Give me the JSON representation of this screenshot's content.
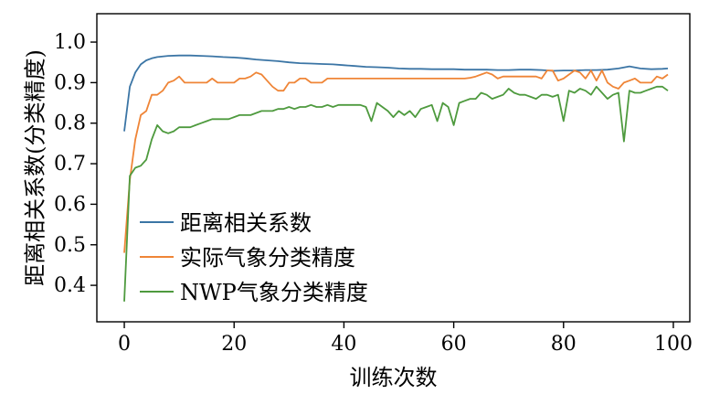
{
  "chart_data": {
    "type": "line",
    "title": "",
    "xlabel": "训练次数",
    "ylabel": "距离相关系数(分类精度)",
    "xlim": [
      -5,
      103
    ],
    "ylim": [
      0.31,
      1.07
    ],
    "xticks": [
      0,
      20,
      40,
      60,
      80,
      100
    ],
    "yticks": [
      0.4,
      0.5,
      0.6,
      0.7,
      0.8,
      0.9,
      1.0
    ],
    "legend_position": "lower-left",
    "grid": false,
    "series": [
      {
        "name": "距离相关系数",
        "color": "#3b75a5",
        "x": [
          0,
          1,
          2,
          3,
          4,
          5,
          6,
          8,
          10,
          12,
          14,
          16,
          18,
          20,
          22,
          24,
          26,
          28,
          30,
          32,
          34,
          36,
          38,
          40,
          42,
          44,
          46,
          48,
          50,
          52,
          54,
          56,
          58,
          60,
          62,
          64,
          66,
          68,
          70,
          72,
          74,
          76,
          78,
          80,
          82,
          84,
          86,
          88,
          90,
          92,
          94,
          96,
          98,
          99
        ],
        "y": [
          0.78,
          0.89,
          0.925,
          0.945,
          0.955,
          0.96,
          0.963,
          0.966,
          0.967,
          0.967,
          0.966,
          0.965,
          0.963,
          0.962,
          0.96,
          0.957,
          0.955,
          0.953,
          0.95,
          0.948,
          0.947,
          0.946,
          0.945,
          0.943,
          0.941,
          0.939,
          0.938,
          0.937,
          0.935,
          0.934,
          0.934,
          0.933,
          0.933,
          0.933,
          0.932,
          0.932,
          0.932,
          0.931,
          0.931,
          0.932,
          0.932,
          0.931,
          0.929,
          0.93,
          0.93,
          0.931,
          0.931,
          0.932,
          0.935,
          0.94,
          0.935,
          0.933,
          0.934,
          0.935
        ]
      },
      {
        "name": "实际气象分类精度",
        "color": "#ef8537",
        "x": [
          0,
          1,
          2,
          3,
          4,
          5,
          6,
          7,
          8,
          9,
          10,
          11,
          12,
          13,
          14,
          15,
          16,
          17,
          18,
          19,
          20,
          21,
          22,
          23,
          24,
          25,
          26,
          27,
          28,
          29,
          30,
          31,
          32,
          33,
          34,
          35,
          36,
          37,
          38,
          40,
          42,
          44,
          46,
          48,
          50,
          52,
          54,
          56,
          58,
          60,
          62,
          63,
          64,
          65,
          66,
          67,
          68,
          69,
          70,
          71,
          72,
          73,
          74,
          75,
          76,
          77,
          78,
          79,
          80,
          81,
          82,
          83,
          84,
          85,
          86,
          87,
          88,
          89,
          90,
          91,
          92,
          93,
          94,
          95,
          96,
          97,
          98,
          99
        ],
        "y": [
          0.48,
          0.66,
          0.76,
          0.82,
          0.83,
          0.87,
          0.87,
          0.88,
          0.9,
          0.905,
          0.915,
          0.9,
          0.9,
          0.9,
          0.9,
          0.9,
          0.91,
          0.9,
          0.9,
          0.9,
          0.9,
          0.91,
          0.91,
          0.915,
          0.925,
          0.92,
          0.905,
          0.89,
          0.88,
          0.88,
          0.9,
          0.9,
          0.91,
          0.91,
          0.9,
          0.9,
          0.9,
          0.91,
          0.91,
          0.91,
          0.91,
          0.91,
          0.91,
          0.91,
          0.91,
          0.91,
          0.91,
          0.91,
          0.91,
          0.91,
          0.91,
          0.912,
          0.915,
          0.92,
          0.925,
          0.92,
          0.91,
          0.915,
          0.915,
          0.915,
          0.915,
          0.915,
          0.915,
          0.915,
          0.91,
          0.93,
          0.93,
          0.905,
          0.91,
          0.92,
          0.93,
          0.925,
          0.91,
          0.93,
          0.905,
          0.93,
          0.9,
          0.89,
          0.885,
          0.9,
          0.905,
          0.91,
          0.9,
          0.9,
          0.9,
          0.915,
          0.91,
          0.92
        ]
      },
      {
        "name": "NWP气象分类精度",
        "color": "#4e9a3e",
        "x": [
          0,
          1,
          2,
          3,
          4,
          5,
          6,
          7,
          8,
          9,
          10,
          11,
          12,
          13,
          14,
          15,
          16,
          17,
          18,
          19,
          20,
          21,
          22,
          23,
          24,
          25,
          26,
          27,
          28,
          29,
          30,
          31,
          32,
          33,
          34,
          35,
          36,
          37,
          38,
          39,
          40,
          41,
          42,
          43,
          44,
          45,
          46,
          47,
          48,
          49,
          50,
          51,
          52,
          53,
          54,
          55,
          56,
          57,
          58,
          59,
          60,
          61,
          62,
          63,
          64,
          65,
          66,
          67,
          68,
          69,
          70,
          71,
          72,
          73,
          74,
          75,
          76,
          77,
          78,
          79,
          80,
          81,
          82,
          83,
          84,
          85,
          86,
          87,
          88,
          89,
          90,
          91,
          92,
          93,
          94,
          95,
          96,
          97,
          98,
          99
        ],
        "y": [
          0.36,
          0.67,
          0.69,
          0.695,
          0.71,
          0.76,
          0.795,
          0.78,
          0.775,
          0.78,
          0.79,
          0.79,
          0.79,
          0.795,
          0.8,
          0.805,
          0.81,
          0.81,
          0.81,
          0.81,
          0.815,
          0.82,
          0.82,
          0.82,
          0.825,
          0.83,
          0.83,
          0.83,
          0.835,
          0.835,
          0.84,
          0.835,
          0.84,
          0.84,
          0.845,
          0.84,
          0.84,
          0.845,
          0.84,
          0.845,
          0.845,
          0.845,
          0.845,
          0.845,
          0.84,
          0.805,
          0.85,
          0.84,
          0.83,
          0.815,
          0.83,
          0.82,
          0.83,
          0.815,
          0.835,
          0.84,
          0.845,
          0.805,
          0.85,
          0.84,
          0.795,
          0.85,
          0.855,
          0.86,
          0.86,
          0.875,
          0.87,
          0.86,
          0.865,
          0.87,
          0.885,
          0.875,
          0.87,
          0.87,
          0.865,
          0.86,
          0.87,
          0.87,
          0.865,
          0.87,
          0.805,
          0.88,
          0.875,
          0.885,
          0.88,
          0.87,
          0.89,
          0.875,
          0.86,
          0.87,
          0.875,
          0.755,
          0.88,
          0.875,
          0.875,
          0.88,
          0.885,
          0.89,
          0.89,
          0.88
        ]
      }
    ]
  }
}
